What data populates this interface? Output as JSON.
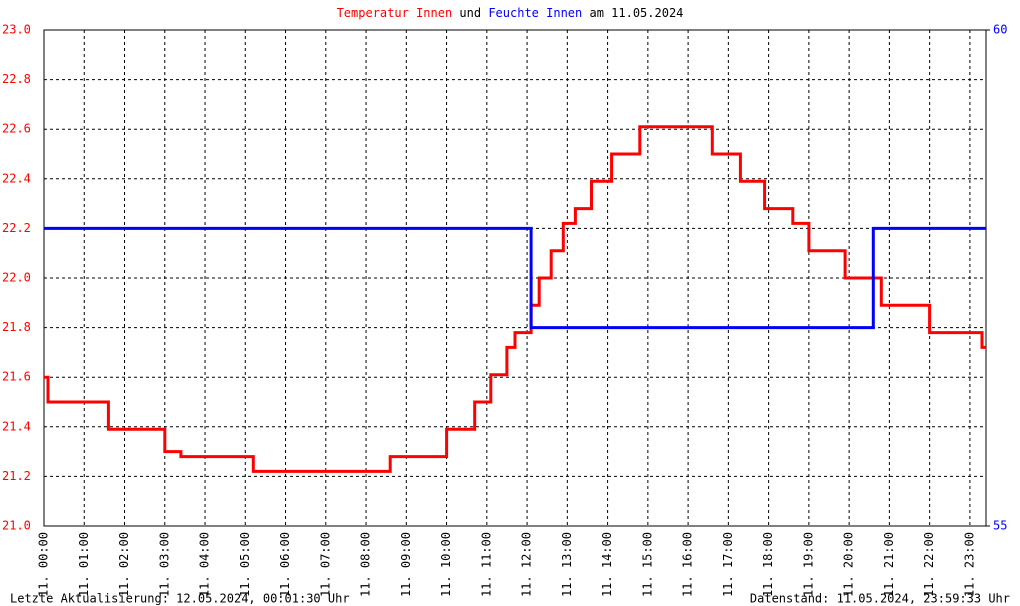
{
  "chart_data": {
    "type": "line",
    "title_parts": [
      {
        "text": "Temperatur Innen",
        "color": "#ff0000"
      },
      {
        "text": "und",
        "color": "#000000"
      },
      {
        "text": "Feuchte Innen",
        "color": "#0000ff"
      },
      {
        "text": "am 11.05.2024",
        "color": "#000000"
      }
    ],
    "footer_left": "Letzte Aktualisierung: 12.05.2024, 00:01:30 Uhr",
    "footer_right": "Datenstand: 11.05.2024, 23:59:33 Uhr",
    "xlim": [
      0,
      23.4
    ],
    "xticks": [
      {
        "value": 0,
        "label": "11. 00:00"
      },
      {
        "value": 1,
        "label": "11. 01:00"
      },
      {
        "value": 2,
        "label": "11. 02:00"
      },
      {
        "value": 3,
        "label": "11. 03:00"
      },
      {
        "value": 4,
        "label": "11. 04:00"
      },
      {
        "value": 5,
        "label": "11. 05:00"
      },
      {
        "value": 6,
        "label": "11. 06:00"
      },
      {
        "value": 7,
        "label": "11. 07:00"
      },
      {
        "value": 8,
        "label": "11. 08:00"
      },
      {
        "value": 9,
        "label": "11. 09:00"
      },
      {
        "value": 10,
        "label": "11. 10:00"
      },
      {
        "value": 11,
        "label": "11. 11:00"
      },
      {
        "value": 12,
        "label": "11. 12:00"
      },
      {
        "value": 13,
        "label": "11. 13:00"
      },
      {
        "value": 14,
        "label": "11. 14:00"
      },
      {
        "value": 15,
        "label": "11. 15:00"
      },
      {
        "value": 16,
        "label": "11. 16:00"
      },
      {
        "value": 17,
        "label": "11. 17:00"
      },
      {
        "value": 18,
        "label": "11. 18:00"
      },
      {
        "value": 19,
        "label": "11. 19:00"
      },
      {
        "value": 20,
        "label": "11. 20:00"
      },
      {
        "value": 21,
        "label": "11. 21:00"
      },
      {
        "value": 22,
        "label": "11. 22:00"
      },
      {
        "value": 23,
        "label": "11. 23:00"
      }
    ],
    "ylim": [
      21.0,
      23.0
    ],
    "yticks": [
      {
        "value": 21.0,
        "label": "21.0"
      },
      21.2,
      21.4,
      21.6,
      21.8,
      {
        "value": 22.0,
        "label": "22.0"
      },
      22.2,
      22.4,
      22.6,
      22.8,
      {
        "value": 23.0,
        "label": "23.0"
      }
    ],
    "y2lim": [
      55,
      60
    ],
    "y2ticks": [
      55,
      60
    ],
    "grid": true,
    "series": [
      {
        "name": "Temperatur Innen",
        "color": "#ff0000",
        "axis": "y",
        "x": [
          0,
          0.1,
          0.1,
          1.6,
          1.6,
          3.0,
          3.0,
          3.4,
          3.4,
          5.2,
          5.2,
          8.6,
          8.6,
          10.0,
          10.0,
          10.7,
          10.7,
          11.1,
          11.1,
          11.5,
          11.5,
          11.7,
          11.7,
          12.1,
          12.1,
          12.3,
          12.3,
          12.6,
          12.6,
          12.9,
          12.9,
          13.2,
          13.2,
          13.6,
          13.6,
          14.1,
          14.1,
          14.8,
          14.8,
          16.6,
          16.6,
          17.3,
          17.3,
          17.9,
          17.9,
          18.6,
          18.6,
          19.0,
          19.0,
          19.9,
          19.9,
          20.8,
          20.8,
          22.0,
          22.0,
          23.3,
          23.3,
          23.4
        ],
        "values": [
          21.6,
          21.6,
          21.5,
          21.5,
          21.39,
          21.39,
          21.3,
          21.3,
          21.28,
          21.28,
          21.22,
          21.22,
          21.28,
          21.28,
          21.39,
          21.39,
          21.5,
          21.5,
          21.61,
          21.61,
          21.72,
          21.72,
          21.78,
          21.78,
          21.89,
          21.89,
          22.0,
          22.0,
          22.11,
          22.11,
          22.22,
          22.22,
          22.28,
          22.28,
          22.39,
          22.39,
          22.5,
          22.5,
          22.61,
          22.61,
          22.5,
          22.5,
          22.39,
          22.39,
          22.28,
          22.28,
          22.22,
          22.22,
          22.11,
          22.11,
          22.0,
          22.0,
          21.89,
          21.89,
          21.78,
          21.78,
          21.72,
          21.72
        ]
      },
      {
        "name": "Feuchte Innen",
        "color": "#0000ff",
        "axis": "y2",
        "x": [
          0,
          12.1,
          12.1,
          20.6,
          20.6,
          23.4
        ],
        "values": [
          58,
          58,
          57,
          57,
          58,
          58
        ]
      }
    ]
  }
}
